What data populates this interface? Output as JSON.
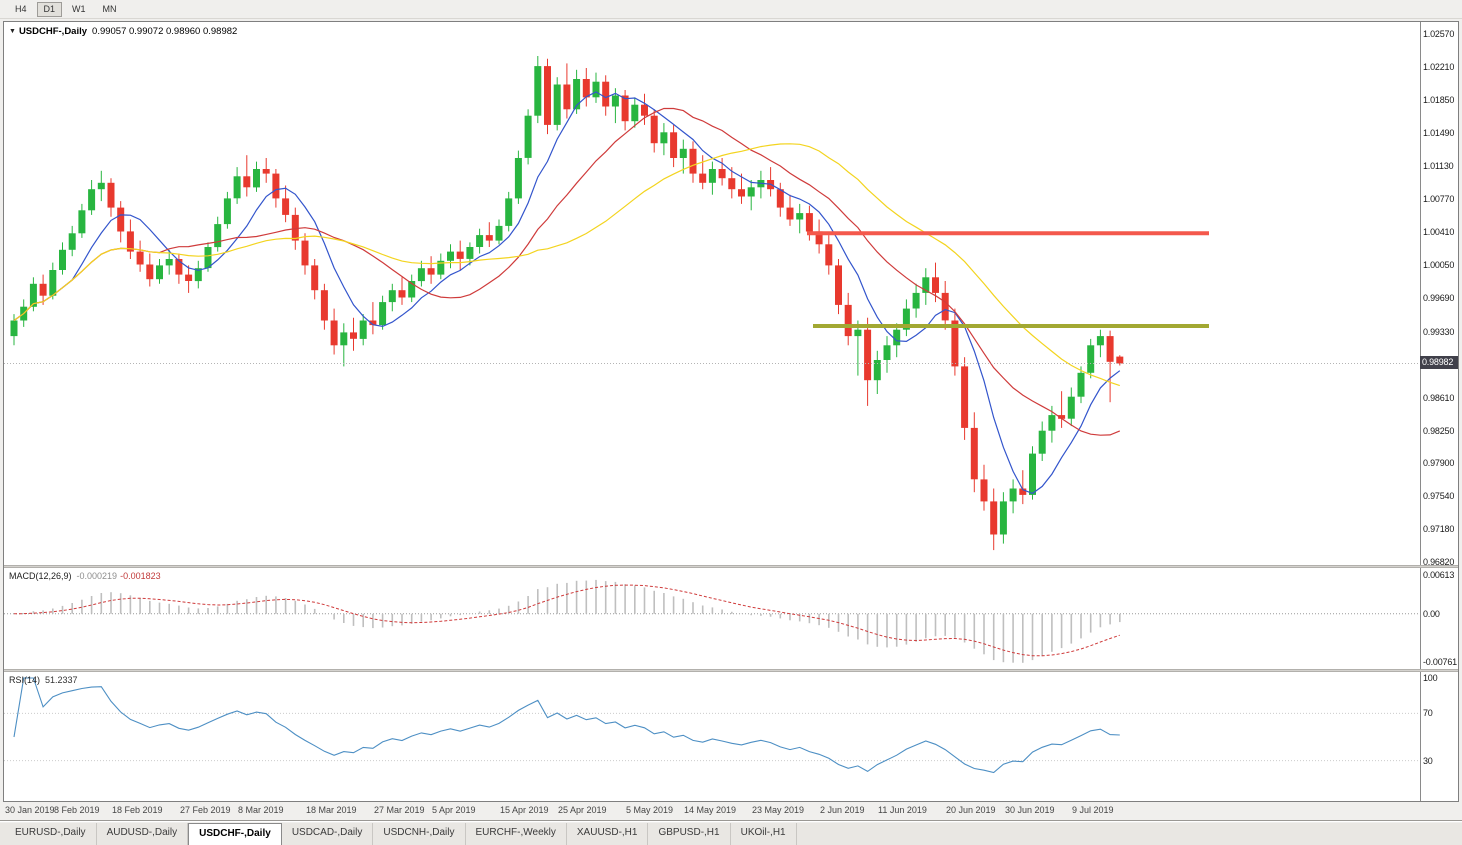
{
  "toolbar": {
    "timeframes": [
      {
        "label": "H4",
        "active": false
      },
      {
        "label": "D1",
        "active": true
      },
      {
        "label": "W1",
        "active": false
      },
      {
        "label": "MN",
        "active": false
      }
    ]
  },
  "chart_header": {
    "symbol": "USDCHF-,Daily",
    "ohlc": "0.99057 0.99072 0.98960 0.98982"
  },
  "price_axis": {
    "max": 1.0257,
    "min": 0.9682,
    "ticks": [
      "1.02570",
      "1.02210",
      "1.01850",
      "1.01490",
      "1.01130",
      "1.00770",
      "1.00410",
      "1.00050",
      "0.99690",
      "0.99330",
      "0.98610",
      "0.98250",
      "0.97900",
      "0.97540",
      "0.97180",
      "0.96820"
    ],
    "current_price": "0.98982"
  },
  "macd_panel": {
    "label": "MACD(12,26,9)",
    "value_main": "-0.000219",
    "value_signal": "-0.001823",
    "ticks": [
      "0.00613",
      "0.00",
      "-0.00761"
    ],
    "max": 0.00613,
    "min": -0.00761
  },
  "rsi_panel": {
    "label": "RSI(14)",
    "value": "51.2337",
    "ticks": [
      "100",
      "70",
      "30"
    ],
    "levels": [
      70,
      30
    ]
  },
  "date_axis": {
    "labels": [
      "30 Jan 2019",
      "8 Feb 2019",
      "18 Feb 2019",
      "27 Feb 2019",
      "8 Mar 2019",
      "18 Mar 2019",
      "27 Mar 2019",
      "5 Apr 2019",
      "15 Apr 2019",
      "25 Apr 2019",
      "5 May 2019",
      "14 May 2019",
      "23 May 2019",
      "2 Jun 2019",
      "11 Jun 2019",
      "20 Jun 2019",
      "30 Jun 2019",
      "9 Jul 2019"
    ]
  },
  "tabs": [
    {
      "label": "EURUSD-,Daily",
      "active": false
    },
    {
      "label": "AUDUSD-,Daily",
      "active": false
    },
    {
      "label": "USDCHF-,Daily",
      "active": true
    },
    {
      "label": "USDCAD-,Daily",
      "active": false
    },
    {
      "label": "USDCNH-,Daily",
      "active": false
    },
    {
      "label": "EURCHF-,Weekly",
      "active": false
    },
    {
      "label": "XAUUSD-,H1",
      "active": false
    },
    {
      "label": "GBPUSD-,H1",
      "active": false
    },
    {
      "label": "UKOil-,H1",
      "active": false
    }
  ],
  "chart_data": {
    "type": "candlestick",
    "symbol": "USDCHF",
    "timeframe": "Daily",
    "colors": {
      "up": "#28b540",
      "down": "#e8392e",
      "background": "#ffffff"
    },
    "ohlc": [
      [
        0.9928,
        0.9952,
        0.9918,
        0.9945
      ],
      [
        0.9945,
        0.9968,
        0.9938,
        0.996
      ],
      [
        0.996,
        0.9992,
        0.9955,
        0.9985
      ],
      [
        0.9985,
        0.9995,
        0.9962,
        0.9972
      ],
      [
        0.9972,
        1.0008,
        0.9968,
        1.0
      ],
      [
        1.0,
        1.003,
        0.9995,
        1.0022
      ],
      [
        1.0022,
        1.0048,
        1.0015,
        1.004
      ],
      [
        1.004,
        1.0072,
        1.0035,
        1.0065
      ],
      [
        1.0065,
        1.0098,
        1.006,
        1.0088
      ],
      [
        1.0088,
        1.0108,
        1.0075,
        1.0095
      ],
      [
        1.0095,
        1.01,
        1.0058,
        1.0068
      ],
      [
        1.0068,
        1.0075,
        1.003,
        1.0042
      ],
      [
        1.0042,
        1.0055,
        1.0012,
        1.002
      ],
      [
        1.002,
        1.0032,
        0.9998,
        1.0006
      ],
      [
        1.0006,
        1.0018,
        0.9982,
        0.999
      ],
      [
        0.999,
        1.0012,
        0.9985,
        1.0005
      ],
      [
        1.0005,
        1.0022,
        0.9995,
        1.0012
      ],
      [
        1.0012,
        1.0018,
        0.9985,
        0.9995
      ],
      [
        0.9995,
        1.0005,
        0.9975,
        0.9988
      ],
      [
        0.9988,
        1.001,
        0.998,
        1.0002
      ],
      [
        1.0002,
        1.003,
        0.9998,
        1.0025
      ],
      [
        1.0025,
        1.0058,
        1.002,
        1.005
      ],
      [
        1.005,
        1.0085,
        1.0045,
        1.0078
      ],
      [
        1.0078,
        1.0112,
        1.0072,
        1.0102
      ],
      [
        1.0102,
        1.0125,
        1.008,
        1.009
      ],
      [
        1.009,
        1.0118,
        1.0085,
        1.011
      ],
      [
        1.011,
        1.0122,
        1.0095,
        1.0105
      ],
      [
        1.0105,
        1.011,
        1.0068,
        1.0078
      ],
      [
        1.0078,
        1.0092,
        1.0052,
        1.006
      ],
      [
        1.006,
        1.0068,
        1.0022,
        1.0032
      ],
      [
        1.0032,
        1.004,
        0.9995,
        1.0005
      ],
      [
        1.0005,
        1.0012,
        0.9968,
        0.9978
      ],
      [
        0.9978,
        0.9985,
        0.9935,
        0.9945
      ],
      [
        0.9945,
        0.9958,
        0.9908,
        0.9918
      ],
      [
        0.9918,
        0.9942,
        0.9895,
        0.9932
      ],
      [
        0.9932,
        0.9948,
        0.9912,
        0.9925
      ],
      [
        0.9925,
        0.9952,
        0.9918,
        0.9945
      ],
      [
        0.9945,
        0.9965,
        0.993,
        0.994
      ],
      [
        0.994,
        0.9972,
        0.9935,
        0.9965
      ],
      [
        0.9965,
        0.9985,
        0.9955,
        0.9978
      ],
      [
        0.9978,
        0.9992,
        0.9962,
        0.997
      ],
      [
        0.997,
        0.9995,
        0.9965,
        0.9988
      ],
      [
        0.9988,
        1.001,
        0.9982,
        1.0002
      ],
      [
        1.0002,
        1.0015,
        0.9985,
        0.9995
      ],
      [
        0.9995,
        1.0018,
        0.999,
        1.001
      ],
      [
        1.001,
        1.0028,
        1.0002,
        1.002
      ],
      [
        1.002,
        1.0032,
        1.0,
        1.0012
      ],
      [
        1.0012,
        1.003,
        1.0005,
        1.0025
      ],
      [
        1.0025,
        1.0045,
        1.0018,
        1.0038
      ],
      [
        1.0038,
        1.0052,
        1.0025,
        1.0032
      ],
      [
        1.0032,
        1.0055,
        1.0028,
        1.0048
      ],
      [
        1.0048,
        1.0085,
        1.0042,
        1.0078
      ],
      [
        1.0078,
        1.013,
        1.0072,
        1.0122
      ],
      [
        1.0122,
        1.0175,
        1.0115,
        1.0168
      ],
      [
        1.0168,
        1.0233,
        1.016,
        1.0222
      ],
      [
        1.0222,
        1.023,
        1.0148,
        1.0158
      ],
      [
        1.0158,
        1.021,
        1.0152,
        1.0202
      ],
      [
        1.0202,
        1.0225,
        1.0165,
        1.0175
      ],
      [
        1.0175,
        1.0218,
        1.017,
        1.0208
      ],
      [
        1.0208,
        1.022,
        1.0178,
        1.0188
      ],
      [
        1.0188,
        1.0215,
        1.0182,
        1.0205
      ],
      [
        1.0205,
        1.0212,
        1.0168,
        1.0178
      ],
      [
        1.0178,
        1.0198,
        1.016,
        1.019
      ],
      [
        1.019,
        1.0196,
        1.0152,
        1.0162
      ],
      [
        1.0162,
        1.0188,
        1.0155,
        1.018
      ],
      [
        1.018,
        1.0192,
        1.0158,
        1.0168
      ],
      [
        1.0168,
        1.0175,
        1.0128,
        1.0138
      ],
      [
        1.0138,
        1.016,
        1.0125,
        1.015
      ],
      [
        1.015,
        1.0158,
        1.0112,
        1.0122
      ],
      [
        1.0122,
        1.0142,
        1.0105,
        1.0132
      ],
      [
        1.0132,
        1.014,
        1.0095,
        1.0105
      ],
      [
        1.0105,
        1.0125,
        1.0088,
        1.0095
      ],
      [
        1.0095,
        1.0118,
        1.0082,
        1.011
      ],
      [
        1.011,
        1.0122,
        1.0092,
        1.01
      ],
      [
        1.01,
        1.0112,
        1.0078,
        1.0088
      ],
      [
        1.0088,
        1.0105,
        1.0072,
        1.008
      ],
      [
        1.008,
        1.0098,
        1.0065,
        1.009
      ],
      [
        1.009,
        1.0108,
        1.0078,
        1.0098
      ],
      [
        1.0098,
        1.0112,
        1.008,
        1.0088
      ],
      [
        1.0088,
        1.0095,
        1.0058,
        1.0068
      ],
      [
        1.0068,
        1.0082,
        1.0048,
        1.0055
      ],
      [
        1.0055,
        1.0072,
        1.004,
        1.0062
      ],
      [
        1.0062,
        1.007,
        1.0032,
        1.0042
      ],
      [
        1.0042,
        1.0055,
        1.0018,
        1.0028
      ],
      [
        1.0028,
        1.0038,
        0.9995,
        1.0005
      ],
      [
        1.0005,
        1.0012,
        0.9952,
        0.9962
      ],
      [
        0.9962,
        0.9975,
        0.9918,
        0.9928
      ],
      [
        0.9928,
        0.9945,
        0.9885,
        0.9935
      ],
      [
        0.9935,
        0.9948,
        0.9852,
        0.988
      ],
      [
        0.988,
        0.9912,
        0.9865,
        0.9902
      ],
      [
        0.9902,
        0.9928,
        0.9888,
        0.9918
      ],
      [
        0.9918,
        0.9942,
        0.9905,
        0.9935
      ],
      [
        0.9935,
        0.9968,
        0.9928,
        0.9958
      ],
      [
        0.9958,
        0.9985,
        0.9948,
        0.9975
      ],
      [
        0.9975,
        1.0002,
        0.9962,
        0.9992
      ],
      [
        0.9992,
        1.0008,
        0.9965,
        0.9975
      ],
      [
        0.9975,
        0.9988,
        0.9935,
        0.9945
      ],
      [
        0.9945,
        0.9958,
        0.9885,
        0.9895
      ],
      [
        0.9895,
        0.9905,
        0.9815,
        0.9828
      ],
      [
        0.9828,
        0.9845,
        0.9758,
        0.9772
      ],
      [
        0.9772,
        0.9788,
        0.9738,
        0.9748
      ],
      [
        0.9748,
        0.9762,
        0.9695,
        0.9712
      ],
      [
        0.9712,
        0.9758,
        0.9702,
        0.9748
      ],
      [
        0.9748,
        0.9772,
        0.9735,
        0.9762
      ],
      [
        0.9762,
        0.9782,
        0.9745,
        0.9755
      ],
      [
        0.9755,
        0.9808,
        0.975,
        0.98
      ],
      [
        0.98,
        0.9835,
        0.9792,
        0.9825
      ],
      [
        0.9825,
        0.9852,
        0.9812,
        0.9842
      ],
      [
        0.9842,
        0.9868,
        0.9828,
        0.9838
      ],
      [
        0.9838,
        0.9872,
        0.983,
        0.9862
      ],
      [
        0.9862,
        0.9895,
        0.9855,
        0.9888
      ],
      [
        0.9888,
        0.9925,
        0.9882,
        0.9918
      ],
      [
        0.9918,
        0.9935,
        0.9905,
        0.9928
      ],
      [
        0.9928,
        0.9934,
        0.9856,
        0.99
      ],
      [
        0.99057,
        0.99072,
        0.9896,
        0.98982
      ]
    ],
    "moving_averages": [
      {
        "period": 7,
        "color": "#3355cc"
      },
      {
        "period": 16,
        "color": "#cf3b3b"
      },
      {
        "period": 30,
        "color": "#f3d41f"
      }
    ],
    "levels": [
      {
        "name": "resistance",
        "price": 1.004,
        "color": "#f4584c",
        "x1": 0.567,
        "x2": 0.851,
        "thickness": 4
      },
      {
        "name": "support",
        "price": 0.9939,
        "color": "#a2a832",
        "x1": 0.571,
        "x2": 0.851,
        "thickness": 4
      }
    ],
    "macd": {
      "fast": 12,
      "slow": 26,
      "signal": 9,
      "histogram_color": "#bfbfbf",
      "signal_color": "#cf3b3b"
    },
    "rsi": {
      "period": 14,
      "color": "#4d8fc4"
    }
  }
}
